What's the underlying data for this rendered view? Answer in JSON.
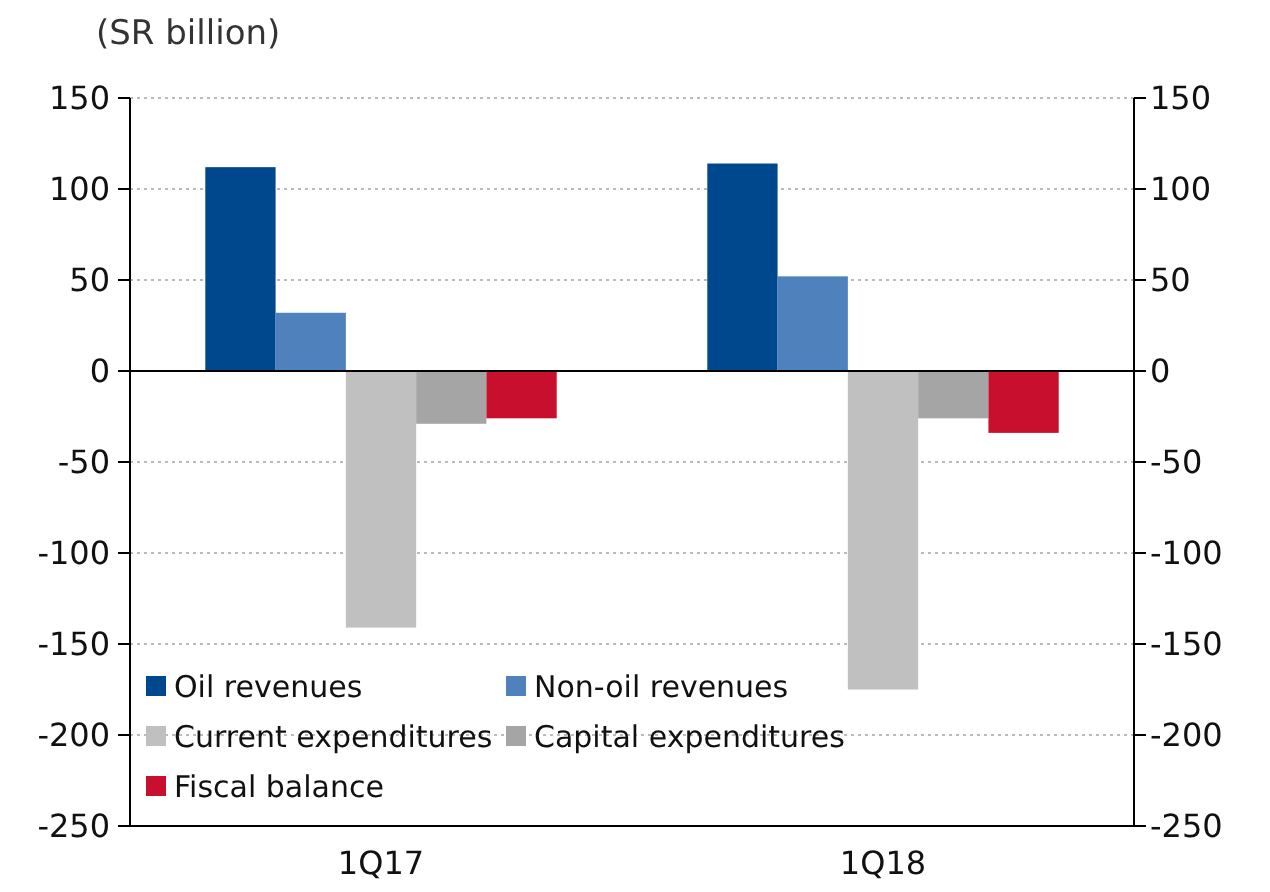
{
  "chart_data": {
    "type": "bar",
    "ylabel": "(SR billion)",
    "categories": [
      "1Q17",
      "1Q18"
    ],
    "series": [
      {
        "name": "Oil revenues",
        "color": "#00488d",
        "values": [
          112,
          114
        ]
      },
      {
        "name": "Non-oil revenues",
        "color": "#4f81bd",
        "values": [
          32,
          52
        ]
      },
      {
        "name": "Current expenditures",
        "color": "#c0c0c0",
        "values": [
          -141,
          -175
        ]
      },
      {
        "name": "Capital expenditures",
        "color": "#a5a5a5",
        "values": [
          -29,
          -26
        ]
      },
      {
        "name": "Fiscal balance",
        "color": "#c8102e",
        "values": [
          -26,
          -34
        ]
      }
    ],
    "ylim": [
      -250,
      150
    ],
    "yticks": [
      -250,
      -200,
      -150,
      -100,
      -50,
      0,
      50,
      100,
      150
    ],
    "y2lim": [
      -250,
      150
    ],
    "y2ticks": [
      -250,
      -200,
      -150,
      -100,
      -50,
      0,
      50,
      100,
      150
    ],
    "grid": "y",
    "legend": "bottom left"
  }
}
